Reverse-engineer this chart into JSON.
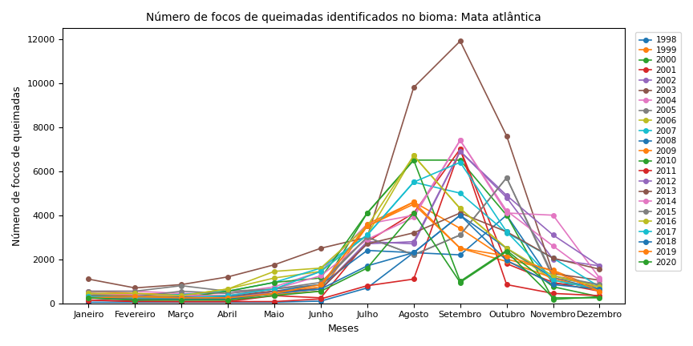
{
  "title": "Número de focos de queimadas identificados no bioma: Mata atlântica",
  "xlabel": "Meses",
  "ylabel": "Número de focos de queimadas",
  "months": [
    "Janeiro",
    "Fevereiro",
    "Março",
    "Abril",
    "Maio",
    "Junho",
    "Julho",
    "Agosto",
    "Setembro",
    "Outubro",
    "Novembro",
    "Dezembro"
  ],
  "years": [
    1998,
    1999,
    2000,
    2001,
    2002,
    2003,
    2004,
    2005,
    2006,
    2007,
    2008,
    2009,
    2010,
    2011,
    2012,
    2013,
    2014,
    2015,
    2016,
    2017,
    2018,
    2019,
    2020
  ],
  "colors": {
    "1998": "#1f77b4",
    "1999": "#ff7f0e",
    "2000": "#2ca02c",
    "2001": "#d62728",
    "2002": "#9467bd",
    "2003": "#8c564b",
    "2004": "#e377c2",
    "2005": "#7f7f7f",
    "2006": "#bcbd22",
    "2007": "#17becf",
    "2008": "#1f77b4",
    "2009": "#ff7f0e",
    "2010": "#2ca02c",
    "2011": "#d62728",
    "2012": "#9467bd",
    "2013": "#8c564b",
    "2014": "#e377c2",
    "2015": "#7f7f7f",
    "2016": "#bcbd22",
    "2017": "#17becf",
    "2018": "#1f77b4",
    "2019": "#ff7f0e",
    "2020": "#2ca02c"
  },
  "data": {
    "1998": [
      50,
      50,
      50,
      50,
      50,
      100,
      700,
      2300,
      2200,
      4000,
      900,
      800
    ],
    "1999": [
      550,
      450,
      400,
      350,
      400,
      550,
      3500,
      4600,
      3400,
      2000,
      1500,
      650
    ],
    "2000": [
      350,
      350,
      300,
      200,
      550,
      650,
      4100,
      6500,
      6500,
      4000,
      180,
      300
    ],
    "2001": [
      150,
      100,
      80,
      80,
      350,
      250,
      2800,
      4100,
      7000,
      1800,
      950,
      550
    ],
    "2002": [
      450,
      400,
      350,
      300,
      450,
      650,
      2700,
      2800,
      6900,
      4800,
      2000,
      1700
    ],
    "2003": [
      1100,
      700,
      850,
      1200,
      1750,
      2500,
      3000,
      9800,
      11900,
      7600,
      1350,
      1050
    ],
    "2004": [
      550,
      550,
      450,
      450,
      750,
      1450,
      3600,
      4000,
      7400,
      4100,
      4000,
      1150
    ],
    "2005": [
      550,
      550,
      800,
      550,
      650,
      850,
      3000,
      2200,
      3100,
      5700,
      1250,
      850
    ],
    "2006": [
      450,
      350,
      350,
      650,
      1150,
      1450,
      3100,
      6700,
      4300,
      2500,
      1050,
      650
    ],
    "2007": [
      450,
      350,
      400,
      550,
      950,
      1600,
      3100,
      5500,
      5000,
      3200,
      2050,
      750
    ],
    "2008": [
      350,
      250,
      300,
      300,
      550,
      850,
      2400,
      2300,
      4000,
      2500,
      1150,
      650
    ],
    "2009": [
      450,
      350,
      250,
      150,
      450,
      750,
      3600,
      4600,
      2500,
      1900,
      1150,
      550
    ],
    "2010": [
      350,
      300,
      250,
      550,
      950,
      1150,
      4100,
      6500,
      1000,
      2400,
      750,
      300
    ],
    "2011": [
      150,
      80,
      80,
      80,
      80,
      200,
      800,
      1100,
      7000,
      850,
      450,
      350
    ],
    "2012": [
      250,
      200,
      150,
      200,
      550,
      650,
      2800,
      2700,
      6900,
      4900,
      3100,
      1700
    ],
    "2013": [
      350,
      200,
      250,
      350,
      550,
      650,
      2700,
      3200,
      4100,
      3250,
      2050,
      1550
    ],
    "2014": [
      450,
      400,
      350,
      350,
      650,
      1250,
      2900,
      3900,
      7400,
      4200,
      2600,
      1050
    ],
    "2015": [
      350,
      300,
      550,
      450,
      650,
      950,
      3000,
      2200,
      3100,
      5700,
      1150,
      850
    ],
    "2016": [
      450,
      450,
      350,
      650,
      1450,
      1600,
      3500,
      6700,
      4300,
      2500,
      1250,
      750
    ],
    "2017": [
      300,
      250,
      250,
      350,
      650,
      1450,
      3100,
      5500,
      6400,
      3250,
      1050,
      650
    ],
    "2018": [
      250,
      150,
      200,
      200,
      450,
      650,
      1700,
      2300,
      4000,
      1950,
      850,
      650
    ],
    "2019": [
      250,
      300,
      250,
      250,
      450,
      850,
      3500,
      4500,
      2500,
      2150,
      1450,
      550
    ],
    "2020": [
      250,
      150,
      150,
      150,
      350,
      550,
      1600,
      4100,
      950,
      2350,
      250,
      250
    ]
  },
  "figsize": [
    8.64,
    4.32
  ],
  "dpi": 100,
  "ylim": [
    0,
    12500
  ],
  "yticks": [
    0,
    2000,
    4000,
    6000,
    8000,
    10000,
    12000
  ],
  "title_fontsize": 10,
  "axis_fontsize": 9,
  "tick_fontsize": 8,
  "legend_fontsize": 7.5,
  "marker_size": 4,
  "linewidth": 1.2
}
